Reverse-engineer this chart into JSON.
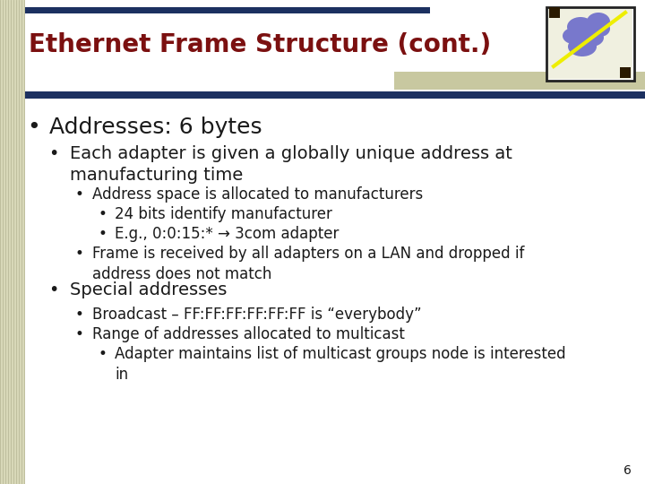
{
  "title": "Ethernet Frame Structure (cont.)",
  "title_color": "#7B1010",
  "title_fontsize": 20,
  "bg_color": "#FFFFFF",
  "left_stripe_color": "#C8C8A0",
  "top_bar_color": "#1C3060",
  "accent_bar_color": "#C8C8A0",
  "slide_number": "6",
  "content": [
    {
      "level": 0,
      "text": "Addresses: 6 bytes",
      "fontsize": 18,
      "bold": false
    },
    {
      "level": 1,
      "text": "Each adapter is given a globally unique address at\nmanufacturing time",
      "fontsize": 14,
      "bold": false
    },
    {
      "level": 2,
      "text": "Address space is allocated to manufacturers",
      "fontsize": 12,
      "bold": false
    },
    {
      "level": 3,
      "text": "24 bits identify manufacturer",
      "fontsize": 12,
      "bold": false
    },
    {
      "level": 3,
      "text": "E.g., 0:0:15:* → 3com adapter",
      "fontsize": 12,
      "bold": false
    },
    {
      "level": 2,
      "text": "Frame is received by all adapters on a LAN and dropped if\naddress does not match",
      "fontsize": 12,
      "bold": false
    },
    {
      "level": 1,
      "text": "Special addresses",
      "fontsize": 14,
      "bold": false
    },
    {
      "level": 2,
      "text": "Broadcast – FF:FF:FF:FF:FF:FF is “everybody”",
      "fontsize": 12,
      "bold": false
    },
    {
      "level": 2,
      "text": "Range of addresses allocated to multicast",
      "fontsize": 12,
      "bold": false
    },
    {
      "level": 3,
      "text": "Adapter maintains list of multicast groups node is interested\nin",
      "fontsize": 12,
      "bold": false
    }
  ],
  "bullet_char": "•",
  "text_color": "#1a1a1a",
  "font_family": "DejaVu Sans",
  "stripe_line_color": "#AAAAAA",
  "stripe_bg_color": "#D8D8B8"
}
